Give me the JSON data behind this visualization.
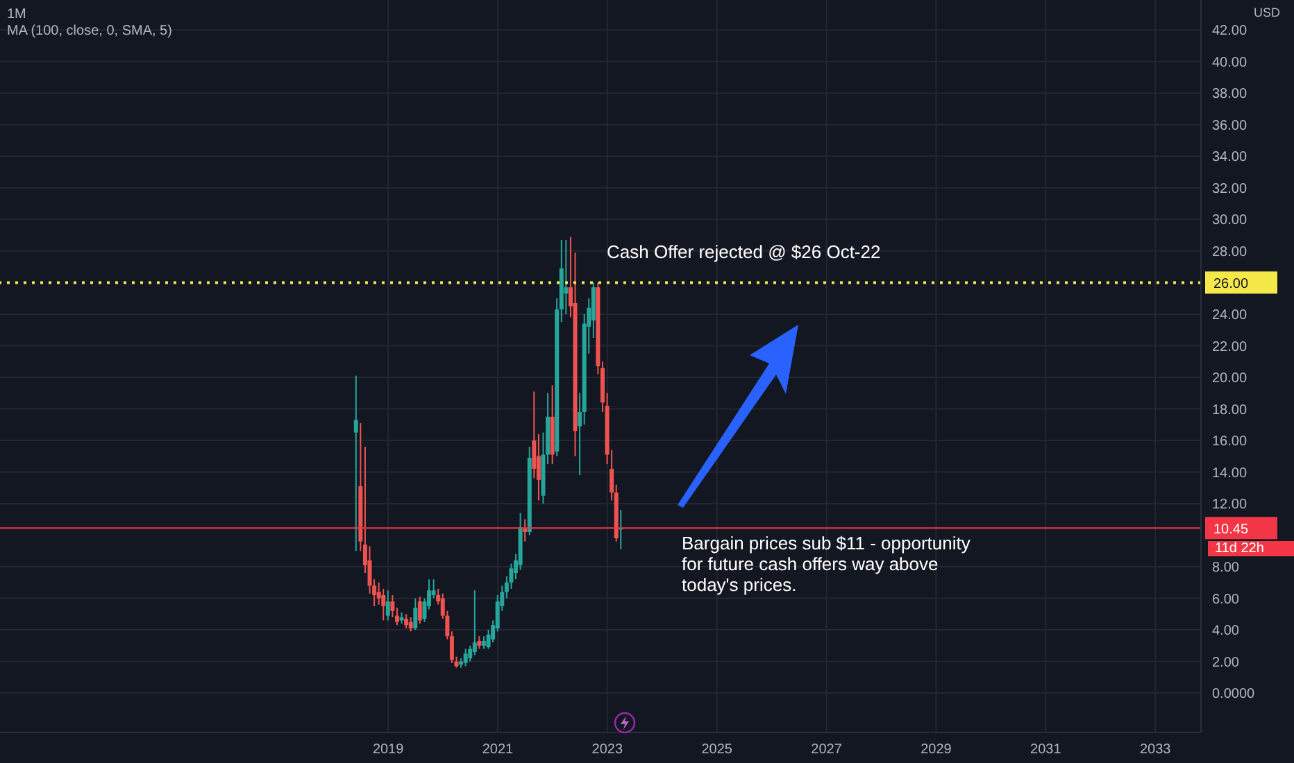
{
  "chart_data": {
    "type": "candlestick",
    "title": "1M",
    "subtitle": "MA (100, close, 0, SMA, 5)",
    "ylabel": "USD",
    "annotations": [
      "Cash Offer rejected @ $26 Oct-22",
      "Bargain prices sub $11 - opportunity for future cash offers way above today's prices.",
      "11d 22h"
    ],
    "x": [
      "2018-06",
      "2018-07",
      "2018-08",
      "2018-09",
      "2018-10",
      "2018-11",
      "2018-12",
      "2019-01",
      "2019-02",
      "2019-03",
      "2019-04",
      "2019-05",
      "2019-06",
      "2019-07",
      "2019-08",
      "2019-09",
      "2019-10",
      "2019-11",
      "2019-12",
      "2020-01",
      "2020-02",
      "2020-03",
      "2020-04",
      "2020-05",
      "2020-06",
      "2020-07",
      "2020-08",
      "2020-09",
      "2020-10",
      "2020-11",
      "2020-12",
      "2021-01",
      "2021-02",
      "2021-03",
      "2021-04",
      "2021-05",
      "2021-06",
      "2021-07",
      "2021-08",
      "2021-09",
      "2021-10",
      "2021-11",
      "2021-12",
      "2022-01",
      "2022-02",
      "2022-03",
      "2022-04",
      "2022-05",
      "2022-06",
      "2022-07",
      "2022-08",
      "2022-09",
      "2022-10",
      "2022-11",
      "2022-12",
      "2023-01",
      "2023-02",
      "2023-03",
      "2023-04"
    ],
    "ohlc": [
      [
        16.5,
        20.1,
        9.0,
        17.3
      ],
      [
        13.1,
        17.1,
        9.0,
        9.6
      ],
      [
        9.4,
        15.6,
        7.6,
        8.1
      ],
      [
        8.4,
        9.3,
        6.3,
        6.8
      ],
      [
        6.8,
        7.2,
        5.5,
        6.2
      ],
      [
        6.4,
        7.0,
        5.6,
        6.0
      ],
      [
        6.2,
        6.6,
        4.6,
        5.5
      ],
      [
        4.9,
        6.5,
        4.6,
        5.8
      ],
      [
        5.8,
        6.2,
        4.8,
        5.2
      ],
      [
        4.9,
        5.4,
        4.3,
        4.5
      ],
      [
        4.6,
        5.1,
        4.4,
        4.8
      ],
      [
        4.7,
        5.0,
        4.1,
        4.3
      ],
      [
        4.5,
        4.8,
        3.9,
        4.1
      ],
      [
        4.1,
        6.0,
        4.0,
        5.4
      ],
      [
        5.8,
        6.1,
        4.4,
        4.6
      ],
      [
        4.7,
        6.0,
        4.5,
        5.8
      ],
      [
        5.5,
        7.2,
        5.3,
        6.5
      ],
      [
        6.2,
        7.2,
        6.0,
        6.5
      ],
      [
        6.2,
        6.6,
        5.6,
        5.8
      ],
      [
        6.0,
        6.3,
        4.7,
        4.9
      ],
      [
        4.9,
        5.2,
        3.4,
        3.6
      ],
      [
        3.6,
        3.9,
        1.9,
        2.1
      ],
      [
        2.0,
        2.3,
        1.6,
        1.7
      ],
      [
        1.8,
        2.2,
        1.6,
        2.0
      ],
      [
        1.9,
        2.8,
        1.7,
        2.5
      ],
      [
        2.2,
        3.0,
        2.0,
        2.8
      ],
      [
        2.6,
        6.5,
        2.4,
        3.2
      ],
      [
        3.3,
        3.6,
        2.8,
        3.0
      ],
      [
        3.0,
        3.6,
        2.8,
        3.3
      ],
      [
        2.9,
        4.0,
        2.8,
        3.7
      ],
      [
        3.4,
        4.6,
        3.2,
        4.3
      ],
      [
        4.1,
        6.2,
        3.9,
        5.8
      ],
      [
        5.5,
        6.8,
        5.2,
        6.4
      ],
      [
        6.4,
        7.4,
        6.0,
        7.0
      ],
      [
        7.0,
        8.2,
        6.6,
        7.9
      ],
      [
        7.6,
        8.8,
        7.2,
        8.4
      ],
      [
        8.1,
        11.4,
        7.8,
        10.5
      ],
      [
        10.4,
        11.0,
        9.6,
        10.2
      ],
      [
        10.2,
        15.6,
        10.0,
        14.9
      ],
      [
        16.0,
        19.1,
        13.6,
        14.2
      ],
      [
        15.0,
        16.4,
        12.2,
        13.5
      ],
      [
        12.5,
        16.5,
        12.0,
        15.1
      ],
      [
        15.1,
        19.0,
        14.5,
        17.5
      ],
      [
        17.5,
        19.5,
        14.5,
        15.1
      ],
      [
        15.3,
        25.0,
        15.0,
        24.3
      ],
      [
        24.3,
        28.7,
        23.5,
        26.9
      ],
      [
        25.3,
        28.7,
        24.0,
        25.7
      ],
      [
        25.7,
        28.9,
        23.8,
        24.5
      ],
      [
        24.7,
        27.9,
        15.0,
        16.6
      ],
      [
        16.9,
        19.0,
        13.8,
        17.8
      ],
      [
        17.8,
        24.0,
        17.0,
        23.4
      ],
      [
        23.2,
        25.0,
        21.5,
        24.4
      ],
      [
        23.6,
        26.0,
        22.5,
        25.7
      ],
      [
        25.7,
        26.0,
        20.2,
        20.7
      ],
      [
        20.6,
        21.0,
        17.8,
        18.4
      ],
      [
        18.2,
        19.0,
        14.5,
        15.1
      ],
      [
        14.2,
        15.4,
        12.2,
        12.7
      ],
      [
        12.7,
        13.2,
        9.6,
        9.8
      ],
      [
        10.4,
        11.6,
        9.1,
        10.45
      ]
    ],
    "colors": [
      "#26a69a",
      "#ef5350",
      "#ef5350",
      "#ef5350",
      "#ef5350",
      "#ef5350",
      "#ef5350",
      "#26a69a",
      "#ef5350",
      "#ef5350",
      "#26a69a",
      "#ef5350",
      "#ef5350",
      "#26a69a",
      "#ef5350",
      "#26a69a",
      "#26a69a",
      "#26a69a",
      "#ef5350",
      "#ef5350",
      "#ef5350",
      "#ef5350",
      "#ef5350",
      "#26a69a",
      "#26a69a",
      "#26a69a",
      "#26a69a",
      "#ef5350",
      "#26a69a",
      "#26a69a",
      "#26a69a",
      "#26a69a",
      "#26a69a",
      "#26a69a",
      "#26a69a",
      "#26a69a",
      "#26a69a",
      "#ef5350",
      "#26a69a",
      "#ef5350",
      "#ef5350",
      "#26a69a",
      "#26a69a",
      "#ef5350",
      "#26a69a",
      "#26a69a",
      "#26a69a",
      "#ef5350",
      "#ef5350",
      "#26a69a",
      "#26a69a",
      "#26a69a",
      "#26a69a",
      "#ef5350",
      "#ef5350",
      "#ef5350",
      "#ef5350",
      "#ef5350",
      "#26a69a"
    ],
    "xlim": [
      "2011-12",
      "2033-11"
    ],
    "xticks": [
      "2019",
      "2021",
      "2023",
      "2025",
      "2027",
      "2029",
      "2031",
      "2033"
    ],
    "ylim": [
      -2.5,
      43.9
    ],
    "yticks": [
      {
        "value": 0,
        "label": "0.0000"
      },
      {
        "value": 2,
        "label": "2.00"
      },
      {
        "value": 4,
        "label": "4.00"
      },
      {
        "value": 6,
        "label": "6.00"
      },
      {
        "value": 8,
        "label": "8.00"
      },
      {
        "value": 12,
        "label": "12.00"
      },
      {
        "value": 14,
        "label": "14.00"
      },
      {
        "value": 16,
        "label": "16.00"
      },
      {
        "value": 18,
        "label": "18.00"
      },
      {
        "value": 20,
        "label": "20.00"
      },
      {
        "value": 22,
        "label": "22.00"
      },
      {
        "value": 24,
        "label": "24.00"
      },
      {
        "value": 28,
        "label": "28.00"
      },
      {
        "value": 30,
        "label": "30.00"
      },
      {
        "value": 32,
        "label": "32.00"
      },
      {
        "value": 34,
        "label": "34.00"
      },
      {
        "value": 36,
        "label": "36.00"
      },
      {
        "value": 38,
        "label": "38.00"
      },
      {
        "value": 40,
        "label": "40.00"
      },
      {
        "value": 42,
        "label": "42.00"
      }
    ],
    "grid": true,
    "ref_lines": [
      {
        "axis": "y",
        "value": 26,
        "label": "26.00",
        "color": "#f5e94a",
        "line_style": "dotted"
      },
      {
        "axis": "y",
        "value": 10.45,
        "label": "10.45",
        "color": "#f23645",
        "line_style": "solid"
      }
    ]
  }
}
